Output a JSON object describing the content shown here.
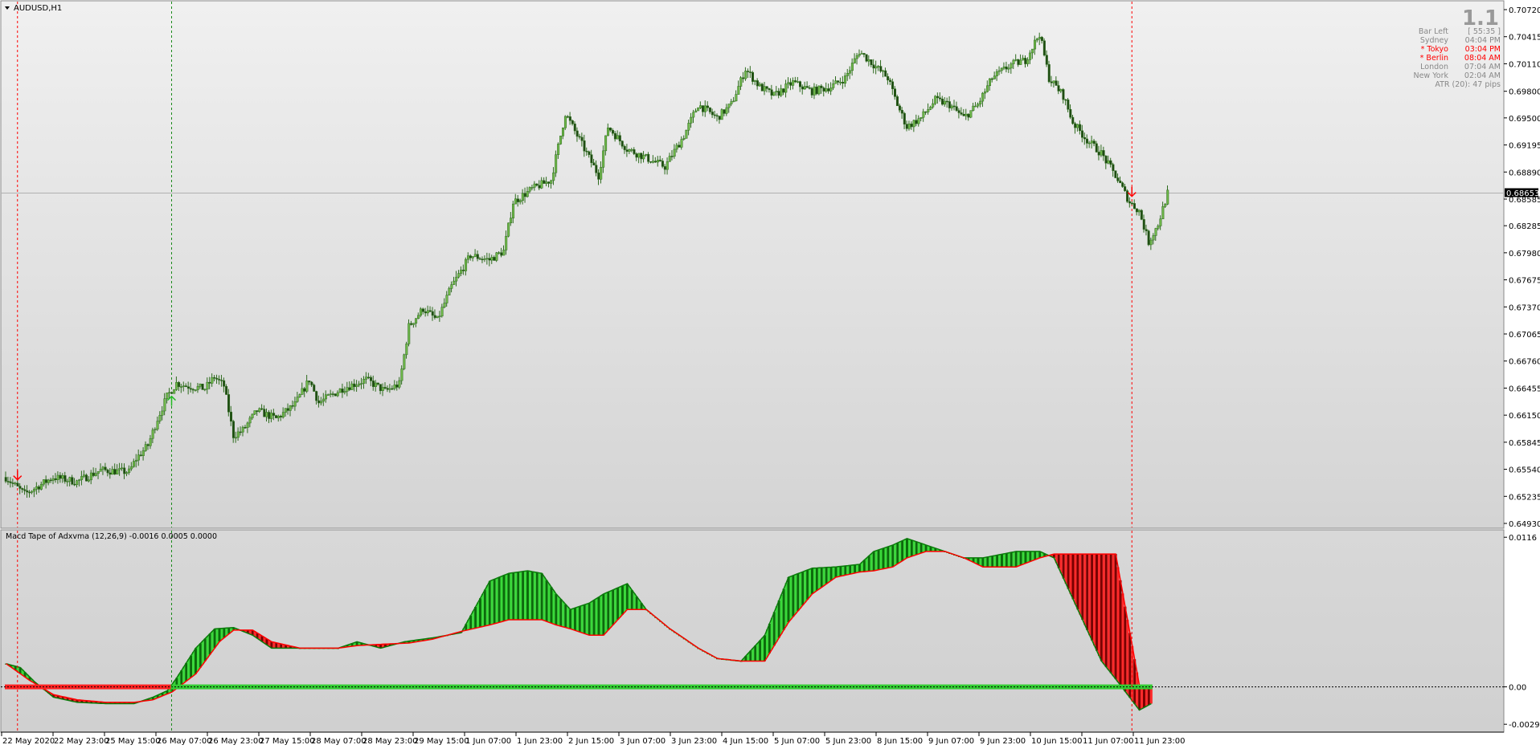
{
  "symbol": {
    "label": "AUDUSD,H1"
  },
  "version_badge": "1.1",
  "info_panel": {
    "rows": [
      {
        "label": "Bar Left",
        "value": "[ 55:35 ]",
        "color": "#888888"
      },
      {
        "label": "Sydney",
        "value": "04:04 PM",
        "color": "#888888"
      },
      {
        "label": "* Tokyo",
        "value": "03:04 PM",
        "color": "#ff0000"
      },
      {
        "label": "* Berlin",
        "value": "08:04 AM",
        "color": "#ff0000"
      },
      {
        "label": "London",
        "value": "07:04 AM",
        "color": "#888888"
      },
      {
        "label": "New York",
        "value": "02:04 AM",
        "color": "#888888"
      }
    ],
    "atr": "ATR (20): 47 pips"
  },
  "indicator": {
    "label": "Macd Tape of Adxvma (12,26,9) -0.0016 0.0005 0.0000"
  },
  "colors": {
    "background": "#ffffff",
    "plot_top": "#f0f0f0",
    "plot_bottom": "#d4d4d4",
    "candle": "#2e6b1e",
    "bull": "#22bb22",
    "bull_dark": "#0a5a0a",
    "bear": "#ee2222",
    "bear_dark": "#6a0000",
    "signal": "#ff0000",
    "zero_green": "#33cc33",
    "zero_red": "#ff2222",
    "vline_red": "#ff0000",
    "vline_green": "#1a8a1a",
    "grid": "#aaaaaa"
  },
  "chart_data": [
    {
      "type": "candlestick",
      "title": "AUDUSD,H1",
      "y_ticks": [
        "0.70720",
        "0.70415",
        "0.70110",
        "0.69800",
        "0.69500",
        "0.69195",
        "0.68890",
        "0.68585",
        "0.68285",
        "0.67980",
        "0.67675",
        "0.67370",
        "0.67065",
        "0.66760",
        "0.66455",
        "0.66150",
        "0.65845",
        "0.65540",
        "0.65235",
        "0.64930"
      ],
      "ylim": [
        0.6493,
        0.7072
      ],
      "current_price": "0.68653",
      "current_price_value": 0.68653,
      "price_path": [
        [
          0,
          0.6545
        ],
        [
          8,
          0.6526
        ],
        [
          20,
          0.6545
        ],
        [
          30,
          0.654
        ],
        [
          40,
          0.6553
        ],
        [
          52,
          0.6551
        ],
        [
          55,
          0.6566
        ],
        [
          60,
          0.6581
        ],
        [
          64,
          0.6611
        ],
        [
          68,
          0.6636
        ],
        [
          72,
          0.6651
        ],
        [
          76,
          0.6648
        ],
        [
          84,
          0.6645
        ],
        [
          88,
          0.6658
        ],
        [
          92,
          0.6648
        ],
        [
          96,
          0.6592
        ],
        [
          100,
          0.6598
        ],
        [
          106,
          0.662
        ],
        [
          114,
          0.6611
        ],
        [
          122,
          0.6627
        ],
        [
          128,
          0.6655
        ],
        [
          132,
          0.6629
        ],
        [
          142,
          0.6645
        ],
        [
          152,
          0.6655
        ],
        [
          160,
          0.6642
        ],
        [
          166,
          0.665
        ],
        [
          170,
          0.6715
        ],
        [
          176,
          0.6735
        ],
        [
          182,
          0.6722
        ],
        [
          188,
          0.676
        ],
        [
          196,
          0.6795
        ],
        [
          204,
          0.679
        ],
        [
          210,
          0.68
        ],
        [
          214,
          0.6855
        ],
        [
          222,
          0.687
        ],
        [
          230,
          0.688
        ],
        [
          236,
          0.6955
        ],
        [
          244,
          0.6915
        ],
        [
          250,
          0.6885
        ],
        [
          254,
          0.694
        ],
        [
          262,
          0.6915
        ],
        [
          270,
          0.6905
        ],
        [
          278,
          0.6895
        ],
        [
          286,
          0.693
        ],
        [
          292,
          0.6965
        ],
        [
          300,
          0.695
        ],
        [
          306,
          0.6965
        ],
        [
          312,
          0.7005
        ],
        [
          318,
          0.6985
        ],
        [
          324,
          0.6975
        ],
        [
          332,
          0.699
        ],
        [
          340,
          0.698
        ],
        [
          348,
          0.6985
        ],
        [
          354,
          0.6995
        ],
        [
          360,
          0.7025
        ],
        [
          366,
          0.701
        ],
        [
          372,
          0.6995
        ],
        [
          376,
          0.6965
        ],
        [
          380,
          0.694
        ],
        [
          386,
          0.695
        ],
        [
          392,
          0.697
        ],
        [
          398,
          0.6965
        ],
        [
          404,
          0.695
        ],
        [
          410,
          0.6965
        ],
        [
          416,
          0.6995
        ],
        [
          424,
          0.701
        ],
        [
          430,
          0.7015
        ],
        [
          436,
          0.7045
        ],
        [
          440,
          0.6995
        ],
        [
          446,
          0.6975
        ],
        [
          450,
          0.6945
        ],
        [
          456,
          0.6925
        ],
        [
          462,
          0.691
        ],
        [
          468,
          0.6885
        ],
        [
          474,
          0.6855
        ],
        [
          478,
          0.6845
        ],
        [
          482,
          0.681
        ],
        [
          486,
          0.683
        ],
        [
          490,
          0.6865
        ]
      ],
      "x_ticks": [
        "22 May 2020",
        "22 May 23:00",
        "25 May 15:00",
        "26 May 07:00",
        "26 May 23:00",
        "27 May 15:00",
        "28 May 07:00",
        "28 May 23:00",
        "29 May 15:00",
        "1 Jun 07:00",
        "1 Jun 23:00",
        "2 Jun 15:00",
        "3 Jun 07:00",
        "3 Jun 23:00",
        "4 Jun 15:00",
        "5 Jun 07:00",
        "5 Jun 23:00",
        "8 Jun 15:00",
        "9 Jun 07:00",
        "9 Jun 23:00",
        "10 Jun 15:00",
        "11 Jun 07:00",
        "11 Jun 23:00"
      ],
      "signals": [
        {
          "type": "sell",
          "bar": 5
        },
        {
          "type": "buy",
          "bar": 70
        },
        {
          "type": "sell",
          "bar": 475
        }
      ],
      "vertical_lines": [
        {
          "bar": 5,
          "color": "red"
        },
        {
          "bar": 70,
          "color": "green"
        },
        {
          "bar": 475,
          "color": "red"
        }
      ]
    },
    {
      "type": "line",
      "title": "Macd Tape of Adxvma (12,26,9)",
      "y_ticks": [
        "0.0116",
        "0.00",
        "-0.0029"
      ],
      "ylim": [
        -0.0032,
        0.0118
      ],
      "zero_line": 0.0,
      "series": [
        {
          "values_path": [
            [
              0,
              0.0018
            ],
            [
              6,
              0.0015
            ],
            [
              12,
              0.0004
            ],
            [
              20,
              -0.0008
            ],
            [
              30,
              -0.0012
            ],
            [
              42,
              -0.0013
            ],
            [
              54,
              -0.0013
            ],
            [
              62,
              -0.0008
            ],
            [
              68,
              -0.0003
            ],
            [
              72,
              0.0007
            ],
            [
              80,
              0.003
            ],
            [
              88,
              0.0045
            ],
            [
              96,
              0.0046
            ],
            [
              104,
              0.004
            ],
            [
              112,
              0.003
            ],
            [
              124,
              0.003
            ],
            [
              140,
              0.003
            ],
            [
              148,
              0.0035
            ],
            [
              158,
              0.003
            ],
            [
              168,
              0.0035
            ],
            [
              180,
              0.0038
            ],
            [
              192,
              0.0042
            ],
            [
              204,
              0.0082
            ],
            [
              212,
              0.0088
            ],
            [
              220,
              0.009
            ],
            [
              226,
              0.0088
            ],
            [
              232,
              0.0072
            ],
            [
              238,
              0.006
            ],
            [
              246,
              0.0065
            ],
            [
              252,
              0.0072
            ],
            [
              262,
              0.008
            ],
            [
              270,
              0.006
            ],
            [
              280,
              0.0045
            ],
            [
              292,
              0.003
            ],
            [
              300,
              0.0022
            ],
            [
              310,
              0.002
            ],
            [
              320,
              0.004
            ],
            [
              330,
              0.0085
            ],
            [
              340,
              0.0092
            ],
            [
              350,
              0.0093
            ],
            [
              360,
              0.0095
            ],
            [
              366,
              0.0105
            ],
            [
              374,
              0.011
            ],
            [
              380,
              0.0115
            ],
            [
              388,
              0.011
            ],
            [
              396,
              0.0105
            ],
            [
              404,
              0.01
            ],
            [
              412,
              0.01
            ],
            [
              426,
              0.0105
            ],
            [
              436,
              0.0105
            ],
            [
              442,
              0.01
            ],
            [
              452,
              0.006
            ],
            [
              462,
              0.002
            ],
            [
              468,
              0.0006
            ],
            [
              478,
              -0.0018
            ],
            [
              484,
              -0.0012
            ]
          ]
        },
        {
          "values_path": [
            [
              0,
              0.0018
            ],
            [
              10,
              0.0005
            ],
            [
              20,
              -0.0006
            ],
            [
              30,
              -0.001
            ],
            [
              42,
              -0.0012
            ],
            [
              54,
              -0.0012
            ],
            [
              62,
              -0.001
            ],
            [
              70,
              -0.0004
            ],
            [
              80,
              0.001
            ],
            [
              90,
              0.0035
            ],
            [
              96,
              0.0044
            ],
            [
              104,
              0.0044
            ],
            [
              112,
              0.0035
            ],
            [
              124,
              0.003
            ],
            [
              140,
              0.003
            ],
            [
              148,
              0.0032
            ],
            [
              158,
              0.0033
            ],
            [
              170,
              0.0034
            ],
            [
              180,
              0.0037
            ],
            [
              192,
              0.0043
            ],
            [
              204,
              0.0048
            ],
            [
              212,
              0.0052
            ],
            [
              220,
              0.0052
            ],
            [
              226,
              0.0052
            ],
            [
              232,
              0.0048
            ],
            [
              238,
              0.0045
            ],
            [
              246,
              0.004
            ],
            [
              252,
              0.004
            ],
            [
              262,
              0.006
            ],
            [
              270,
              0.006
            ],
            [
              280,
              0.0045
            ],
            [
              292,
              0.003
            ],
            [
              300,
              0.0022
            ],
            [
              310,
              0.002
            ],
            [
              320,
              0.002
            ],
            [
              330,
              0.005
            ],
            [
              340,
              0.0072
            ],
            [
              350,
              0.0085
            ],
            [
              360,
              0.0089
            ],
            [
              366,
              0.009
            ],
            [
              374,
              0.0093
            ],
            [
              380,
              0.01
            ],
            [
              388,
              0.0105
            ],
            [
              396,
              0.0105
            ],
            [
              404,
              0.01
            ],
            [
              412,
              0.0093
            ],
            [
              426,
              0.0093
            ],
            [
              436,
              0.01
            ],
            [
              442,
              0.0103
            ],
            [
              452,
              0.0103
            ],
            [
              462,
              0.0103
            ],
            [
              468,
              0.0103
            ],
            [
              478,
              0.0001
            ],
            [
              484,
              0.0001
            ]
          ]
        }
      ],
      "zero_tape": [
        {
          "from_bar": 0,
          "to_bar": 70,
          "color": "red"
        },
        {
          "from_bar": 70,
          "to_bar": 484,
          "color": "green"
        }
      ]
    }
  ]
}
